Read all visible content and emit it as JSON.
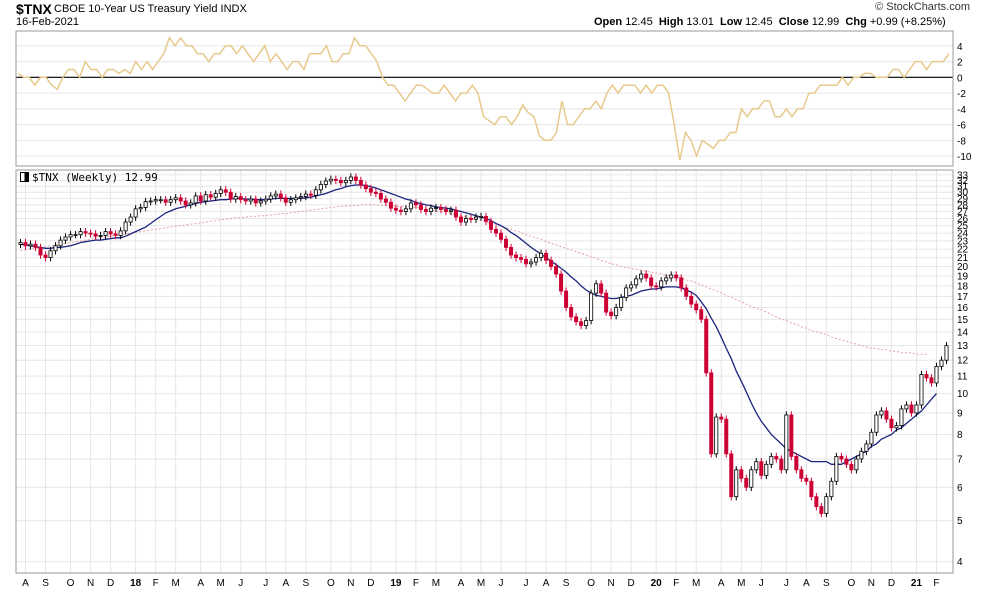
{
  "header": {
    "symbol": "$TNX",
    "name": "CBOE 10-Year US Treasury Yield",
    "exchange": "INDX",
    "date": "16-Feb-2021",
    "brand": "© StockCharts.com",
    "open_label": "Open",
    "open": "12.45",
    "high_label": "High",
    "high": "13.01",
    "low_label": "Low",
    "low": "12.45",
    "close_label": "Close",
    "close": "12.99",
    "chg_label": "Chg",
    "chg": "+0.99 (+8.25%)"
  },
  "legend": {
    "text": "$TNX (Weekly) 12.99"
  },
  "colors": {
    "up": "#000000",
    "down": "#cc0033",
    "ma_fast": "#1a237e",
    "ma_slow": "#e8a0a0",
    "indicator": "#e8c98c",
    "grid": "#e6e6e6"
  },
  "chart_data": [
    {
      "type": "line",
      "title": "",
      "ylim": [
        -11,
        5.5
      ],
      "yticks": [
        4,
        2,
        0,
        -2,
        -4,
        -6,
        -8,
        -10
      ],
      "zero_line": true,
      "series": [
        {
          "name": "",
          "values": [
            0.5,
            0,
            0,
            -1,
            0,
            0,
            -1,
            -1.5,
            0,
            1,
            1,
            0,
            2,
            1,
            1,
            0,
            1,
            1,
            0.5,
            1,
            0.5,
            2,
            1,
            2,
            1,
            2,
            3,
            5,
            4,
            5,
            4,
            4,
            3,
            3,
            2,
            3,
            3,
            4,
            4,
            3,
            4,
            3,
            2,
            3,
            4,
            2,
            3,
            2,
            1,
            2,
            2,
            1,
            3,
            3,
            3,
            4,
            2,
            2,
            3,
            3,
            5,
            4,
            4,
            3,
            2,
            0,
            -1,
            -1,
            -2,
            -3,
            -2,
            -1,
            -1,
            -1.5,
            -2,
            -2,
            -1,
            -2,
            -3,
            -2,
            -2,
            -1,
            -2,
            -5,
            -5.5,
            -6,
            -5,
            -5,
            -6,
            -5,
            -3.5,
            -4.5,
            -5,
            -7.5,
            -8,
            -8,
            -7,
            -3,
            -6,
            -6,
            -5,
            -4,
            -4,
            -3,
            -4,
            -2,
            -1,
            -2,
            -1,
            -1,
            -1,
            -2,
            -1,
            -2,
            -1,
            -1,
            -2,
            -6,
            -10.5,
            -7,
            -8,
            -10,
            -8,
            -8.5,
            -9,
            -8,
            -8,
            -7,
            -7,
            -4,
            -5,
            -4,
            -4,
            -3,
            -3,
            -5,
            -5,
            -4,
            -5,
            -4,
            -4,
            -2,
            -2,
            -1,
            -1,
            -1,
            -1,
            0,
            -1,
            0,
            0,
            0.5,
            0.5,
            0,
            0,
            0,
            1,
            1,
            0,
            1,
            2,
            2,
            1,
            2,
            2,
            2,
            3
          ]
        }
      ]
    },
    {
      "type": "candlestick",
      "title": "$TNX (Weekly) 12.99",
      "ylim": [
        3.8,
        33.5
      ],
      "yscale": "log",
      "yticks": [
        33,
        32,
        31,
        30,
        29,
        28,
        27,
        26,
        25,
        24,
        23,
        22,
        21,
        20,
        19,
        18,
        17,
        16,
        15,
        14,
        13,
        12,
        11,
        10,
        9,
        8,
        7,
        6,
        5,
        4
      ],
      "x_ticks": [
        {
          "i": 1,
          "label": "A",
          "bold": false
        },
        {
          "i": 5,
          "label": "S",
          "bold": false
        },
        {
          "i": 10,
          "label": "O",
          "bold": false
        },
        {
          "i": 14,
          "label": "N",
          "bold": false
        },
        {
          "i": 18,
          "label": "D",
          "bold": false
        },
        {
          "i": 23,
          "label": "18",
          "bold": true
        },
        {
          "i": 27,
          "label": "F",
          "bold": false
        },
        {
          "i": 31,
          "label": "M",
          "bold": false
        },
        {
          "i": 36,
          "label": "A",
          "bold": false
        },
        {
          "i": 40,
          "label": "M",
          "bold": false
        },
        {
          "i": 44,
          "label": "J",
          "bold": false
        },
        {
          "i": 49,
          "label": "J",
          "bold": false
        },
        {
          "i": 53,
          "label": "A",
          "bold": false
        },
        {
          "i": 57,
          "label": "S",
          "bold": false
        },
        {
          "i": 62,
          "label": "O",
          "bold": false
        },
        {
          "i": 66,
          "label": "N",
          "bold": false
        },
        {
          "i": 70,
          "label": "D",
          "bold": false
        },
        {
          "i": 75,
          "label": "19",
          "bold": true
        },
        {
          "i": 79,
          "label": "F",
          "bold": false
        },
        {
          "i": 83,
          "label": "M",
          "bold": false
        },
        {
          "i": 88,
          "label": "A",
          "bold": false
        },
        {
          "i": 92,
          "label": "M",
          "bold": false
        },
        {
          "i": 96,
          "label": "J",
          "bold": false
        },
        {
          "i": 101,
          "label": "J",
          "bold": false
        },
        {
          "i": 105,
          "label": "A",
          "bold": false
        },
        {
          "i": 109,
          "label": "S",
          "bold": false
        },
        {
          "i": 114,
          "label": "O",
          "bold": false
        },
        {
          "i": 118,
          "label": "N",
          "bold": false
        },
        {
          "i": 122,
          "label": "D",
          "bold": false
        },
        {
          "i": 127,
          "label": "20",
          "bold": true
        },
        {
          "i": 131,
          "label": "F",
          "bold": false
        },
        {
          "i": 135,
          "label": "M",
          "bold": false
        },
        {
          "i": 140,
          "label": "A",
          "bold": false
        },
        {
          "i": 144,
          "label": "M",
          "bold": false
        },
        {
          "i": 148,
          "label": "J",
          "bold": false
        },
        {
          "i": 153,
          "label": "J",
          "bold": false
        },
        {
          "i": 157,
          "label": "A",
          "bold": false
        },
        {
          "i": 161,
          "label": "S",
          "bold": false
        },
        {
          "i": 166,
          "label": "O",
          "bold": false
        },
        {
          "i": 170,
          "label": "N",
          "bold": false
        },
        {
          "i": 174,
          "label": "D",
          "bold": false
        },
        {
          "i": 179,
          "label": "21",
          "bold": true
        },
        {
          "i": 183,
          "label": "F",
          "bold": false
        }
      ],
      "close": [
        22.8,
        22.4,
        22.6,
        22.2,
        21.3,
        21.0,
        21.8,
        22.4,
        23.1,
        23.5,
        23.8,
        23.8,
        24.2,
        24.0,
        23.9,
        23.6,
        23.7,
        24.2,
        23.9,
        23.7,
        24.3,
        25.5,
        26.2,
        27.4,
        27.6,
        28.5,
        28.6,
        28.8,
        28.8,
        28.4,
        28.8,
        29.1,
        28.6,
        28.0,
        28.3,
        29.4,
        28.6,
        29.6,
        29.2,
        29.8,
        30.4,
        30.0,
        28.9,
        29.3,
        28.8,
        28.6,
        28.9,
        28.3,
        28.6,
        28.9,
        29.4,
        29.7,
        29.1,
        28.4,
        28.8,
        29.1,
        29.3,
        29.7,
        29.5,
        30.4,
        31.3,
        31.9,
        32.2,
        32.0,
        31.6,
        32.0,
        32.6,
        32.0,
        31.2,
        30.6,
        30.0,
        29.8,
        28.9,
        28.4,
        27.5,
        27.2,
        27.0,
        27.4,
        28.3,
        28.0,
        27.3,
        27.0,
        27.5,
        27.6,
        27.3,
        27.0,
        27.2,
        26.2,
        25.5,
        26.0,
        25.9,
        26.2,
        26.3,
        25.6,
        24.5,
        24.0,
        23.2,
        22.2,
        21.3,
        21.0,
        20.8,
        20.3,
        20.5,
        21.0,
        21.5,
        20.7,
        20.0,
        19.2,
        17.5,
        16.0,
        15.2,
        14.8,
        14.5,
        14.9,
        17.3,
        18.2,
        17.3,
        15.6,
        15.3,
        16.0,
        16.9,
        17.8,
        18.1,
        18.7,
        19.2,
        18.8,
        18.0,
        17.9,
        18.5,
        18.8,
        19.1,
        18.8,
        17.8,
        17.0,
        16.3,
        15.8,
        15.0,
        11.2,
        7.2,
        8.8,
        8.7,
        7.2,
        5.7,
        6.6,
        6.3,
        6.0,
        6.6,
        6.9,
        6.4,
        6.8,
        7.1,
        7.0,
        6.6,
        8.9,
        7.1,
        6.6,
        6.3,
        6.2,
        5.7,
        5.4,
        5.2,
        5.7,
        6.2,
        7.1,
        7.0,
        6.8,
        6.6,
        7.0,
        7.3,
        7.6,
        8.1,
        8.9,
        9.1,
        8.7,
        8.3,
        8.4,
        9.2,
        9.4,
        9.0,
        9.4,
        11.1,
        10.9,
        10.6,
        11.6,
        12.0,
        12.99
      ],
      "series": [
        {
          "name": "",
          "kind": "ma_fast",
          "values": [
            22.6,
            22.5,
            22.4,
            22.3,
            22.2,
            22.1,
            22.1,
            22.2,
            22.2,
            22.3,
            22.4,
            22.6,
            22.8,
            22.9,
            23.0,
            23.1,
            23.1,
            23.2,
            23.3,
            23.4,
            23.4,
            23.6,
            23.9,
            24.2,
            24.5,
            24.8,
            25.3,
            25.8,
            26.3,
            26.8,
            27.1,
            27.4,
            27.6,
            27.8,
            28.0,
            28.2,
            28.4,
            28.5,
            28.6,
            28.7,
            28.8,
            28.8,
            28.9,
            29.0,
            29.0,
            28.9,
            28.9,
            28.8,
            28.8,
            28.8,
            28.9,
            29.0,
            29.0,
            29.0,
            29.0,
            29.0,
            29.0,
            29.1,
            29.2,
            29.4,
            29.6,
            29.8,
            30.1,
            30.4,
            30.6,
            30.9,
            31.1,
            31.2,
            31.2,
            31.1,
            30.9,
            30.7,
            30.4,
            30.1,
            29.8,
            29.5,
            29.2,
            28.9,
            28.7,
            28.4,
            28.2,
            28.0,
            27.9,
            27.7,
            27.6,
            27.5,
            27.4,
            27.2,
            27.0,
            26.8,
            26.6,
            26.4,
            26.2,
            26.0,
            25.7,
            25.3,
            25.0,
            24.6,
            24.1,
            23.7,
            23.2,
            22.7,
            22.2,
            21.8,
            21.4,
            21.0,
            20.6,
            20.2,
            19.8,
            19.4,
            18.9,
            18.5,
            18.0,
            17.6,
            17.3,
            17.1,
            17.0,
            16.9,
            16.8,
            16.8,
            16.9,
            17.0,
            17.1,
            17.3,
            17.5,
            17.6,
            17.7,
            17.7,
            17.8,
            17.9,
            17.9,
            17.9,
            17.8,
            17.6,
            17.4,
            17.1,
            16.5,
            15.9,
            15.1,
            14.4,
            13.6,
            12.8,
            12.1,
            11.3,
            10.7,
            10.1,
            9.5,
            9.0,
            8.6,
            8.3,
            8.0,
            7.8,
            7.6,
            7.4,
            7.3,
            7.2,
            7.1,
            7.0,
            6.9,
            6.9,
            6.9,
            6.9,
            6.8,
            6.8,
            6.8,
            6.9,
            7.0,
            7.1,
            7.2,
            7.3,
            7.5,
            7.6,
            7.8,
            7.9,
            8.0,
            8.2,
            8.3,
            8.5,
            8.7,
            8.9,
            9.1,
            9.4,
            9.7,
            10.0
          ]
        },
        {
          "name": "",
          "kind": "ma_slow",
          "values": [
            21.8,
            21.9,
            22.0,
            22.1,
            22.2,
            22.3,
            22.4,
            22.5,
            22.6,
            22.7,
            22.8,
            22.9,
            23.0,
            23.1,
            23.2,
            23.3,
            23.4,
            23.5,
            23.6,
            23.7,
            23.8,
            23.9,
            24.0,
            24.1,
            24.2,
            24.3,
            24.4,
            24.5,
            24.6,
            24.7,
            24.8,
            24.9,
            25.0,
            25.1,
            25.2,
            25.3,
            25.4,
            25.5,
            25.6,
            25.7,
            25.8,
            25.9,
            26.0,
            26.1,
            26.1,
            26.2,
            26.3,
            26.3,
            26.4,
            26.4,
            26.5,
            26.6,
            26.7,
            26.7,
            26.8,
            26.9,
            27.0,
            27.1,
            27.2,
            27.3,
            27.4,
            27.5,
            27.6,
            27.7,
            27.8,
            27.8,
            27.9,
            27.9,
            28.0,
            28.0,
            28.0,
            28.0,
            27.9,
            27.9,
            27.9,
            27.8,
            27.8,
            27.7,
            27.7,
            27.6,
            27.5,
            27.4,
            27.3,
            27.1,
            27.0,
            26.9,
            26.7,
            26.6,
            26.4,
            26.2,
            26.0,
            25.9,
            25.7,
            25.5,
            25.3,
            25.1,
            24.9,
            24.7,
            24.5,
            24.3,
            24.1,
            23.8,
            23.6,
            23.4,
            23.2,
            22.9,
            22.7,
            22.5,
            22.3,
            22.1,
            21.9,
            21.7,
            21.5,
            21.3,
            21.1,
            20.9,
            20.7,
            20.5,
            20.3,
            20.2,
            20.0,
            19.9,
            19.8,
            19.7,
            19.6,
            19.5,
            19.4,
            19.3,
            19.2,
            19.1,
            19.0,
            18.9,
            18.8,
            18.6,
            18.5,
            18.3,
            18.1,
            17.9,
            17.7,
            17.5,
            17.3,
            17.1,
            16.9,
            16.7,
            16.5,
            16.3,
            16.1,
            15.9,
            15.8,
            15.6,
            15.4,
            15.2,
            15.0,
            14.9,
            14.7,
            14.6,
            14.4,
            14.3,
            14.1,
            14.0,
            13.9,
            13.8,
            13.6,
            13.5,
            13.4,
            13.3,
            13.2,
            13.1,
            13.0,
            12.9,
            12.8,
            12.8,
            12.7,
            12.7,
            12.6,
            12.6,
            12.5,
            12.5,
            12.5,
            12.4,
            12.4,
            12.4
          ]
        }
      ]
    }
  ]
}
